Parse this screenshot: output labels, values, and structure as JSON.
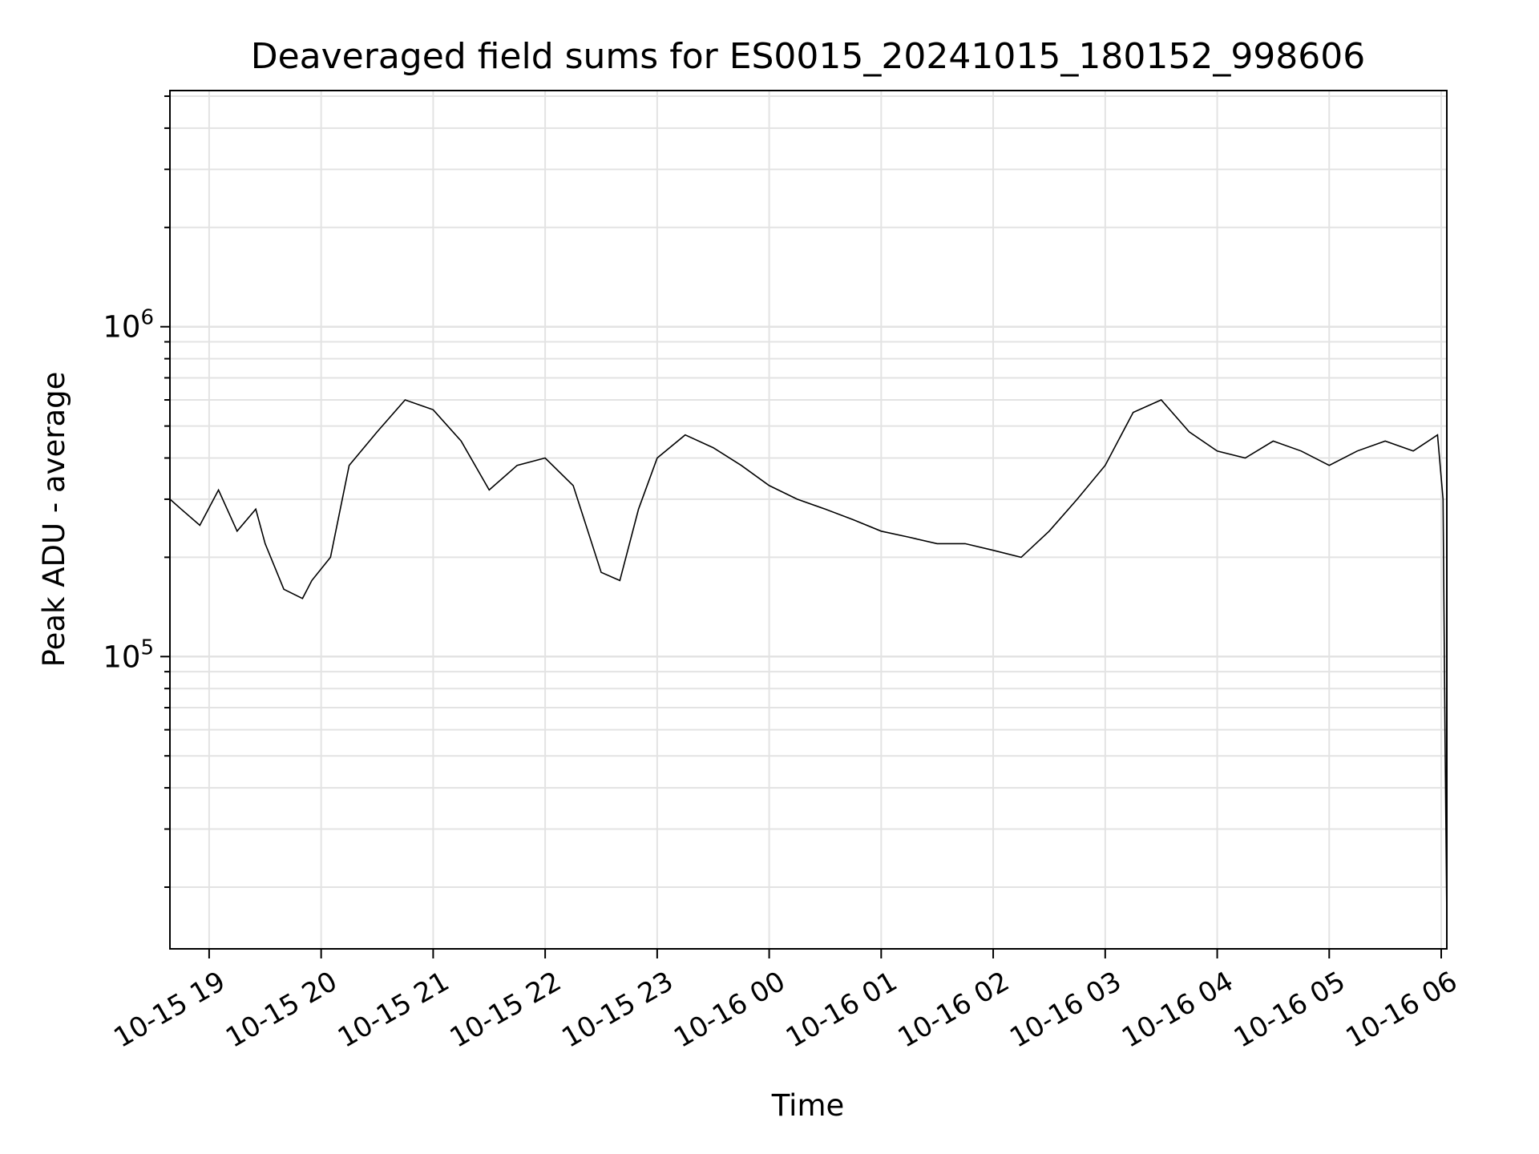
{
  "chart_data": {
    "type": "line",
    "title": "Deaveraged field sums for ES0015_20241015_180152_998606",
    "xlabel": "Time",
    "ylabel": "Peak ADU - average",
    "x_start": "2024-10-15T18:39",
    "x_end": "2024-10-16T06:03",
    "xlim": [
      "2024-10-15T18:39",
      "2024-10-16T06:03"
    ],
    "ylim": [
      13000,
      5200000
    ],
    "yscale": "log",
    "grid": true,
    "line_color": "#000000",
    "grid_color": "#e3e3e3",
    "x_ticks": [
      {
        "label": "10-15 19",
        "time": "2024-10-15T19:00"
      },
      {
        "label": "10-15 20",
        "time": "2024-10-15T20:00"
      },
      {
        "label": "10-15 21",
        "time": "2024-10-15T21:00"
      },
      {
        "label": "10-15 22",
        "time": "2024-10-15T22:00"
      },
      {
        "label": "10-15 23",
        "time": "2024-10-15T23:00"
      },
      {
        "label": "10-16 00",
        "time": "2024-10-16T00:00"
      },
      {
        "label": "10-16 01",
        "time": "2024-10-16T01:00"
      },
      {
        "label": "10-16 02",
        "time": "2024-10-16T02:00"
      },
      {
        "label": "10-16 03",
        "time": "2024-10-16T03:00"
      },
      {
        "label": "10-16 04",
        "time": "2024-10-16T04:00"
      },
      {
        "label": "10-16 05",
        "time": "2024-10-16T05:00"
      },
      {
        "label": "10-16 06",
        "time": "2024-10-16T06:00"
      }
    ],
    "y_ticks": [
      {
        "base": "10",
        "exp": "5",
        "value": 100000
      },
      {
        "base": "10",
        "exp": "6",
        "value": 1000000
      }
    ],
    "series": [
      {
        "values": [
          [
            "2024-10-15T18:39",
            300000
          ],
          [
            "2024-10-15T18:45",
            280000
          ],
          [
            "2024-10-15T18:55",
            250000
          ],
          [
            "2024-10-15T19:05",
            320000
          ],
          [
            "2024-10-15T19:15",
            240000
          ],
          [
            "2024-10-15T19:25",
            280000
          ],
          [
            "2024-10-15T19:30",
            220000
          ],
          [
            "2024-10-15T19:40",
            160000
          ],
          [
            "2024-10-15T19:50",
            150000
          ],
          [
            "2024-10-15T19:55",
            170000
          ],
          [
            "2024-10-15T20:05",
            200000
          ],
          [
            "2024-10-15T20:15",
            380000
          ],
          [
            "2024-10-15T20:30",
            480000
          ],
          [
            "2024-10-15T20:45",
            600000
          ],
          [
            "2024-10-15T21:00",
            560000
          ],
          [
            "2024-10-15T21:15",
            450000
          ],
          [
            "2024-10-15T21:30",
            320000
          ],
          [
            "2024-10-15T21:45",
            380000
          ],
          [
            "2024-10-15T22:00",
            400000
          ],
          [
            "2024-10-15T22:15",
            330000
          ],
          [
            "2024-10-15T22:30",
            180000
          ],
          [
            "2024-10-15T22:40",
            170000
          ],
          [
            "2024-10-15T22:50",
            280000
          ],
          [
            "2024-10-15T23:00",
            400000
          ],
          [
            "2024-10-15T23:15",
            470000
          ],
          [
            "2024-10-15T23:30",
            430000
          ],
          [
            "2024-10-15T23:45",
            380000
          ],
          [
            "2024-10-16T00:00",
            330000
          ],
          [
            "2024-10-16T00:15",
            300000
          ],
          [
            "2024-10-16T00:30",
            280000
          ],
          [
            "2024-10-16T00:45",
            260000
          ],
          [
            "2024-10-16T01:00",
            240000
          ],
          [
            "2024-10-16T01:15",
            230000
          ],
          [
            "2024-10-16T01:30",
            220000
          ],
          [
            "2024-10-16T01:45",
            220000
          ],
          [
            "2024-10-16T02:00",
            210000
          ],
          [
            "2024-10-16T02:15",
            200000
          ],
          [
            "2024-10-16T02:30",
            240000
          ],
          [
            "2024-10-16T02:45",
            300000
          ],
          [
            "2024-10-16T03:00",
            380000
          ],
          [
            "2024-10-16T03:15",
            550000
          ],
          [
            "2024-10-16T03:30",
            600000
          ],
          [
            "2024-10-16T03:45",
            480000
          ],
          [
            "2024-10-16T04:00",
            420000
          ],
          [
            "2024-10-16T04:15",
            400000
          ],
          [
            "2024-10-16T04:30",
            450000
          ],
          [
            "2024-10-16T04:45",
            420000
          ],
          [
            "2024-10-16T05:00",
            380000
          ],
          [
            "2024-10-16T05:15",
            420000
          ],
          [
            "2024-10-16T05:30",
            450000
          ],
          [
            "2024-10-16T05:45",
            420000
          ],
          [
            "2024-10-16T05:58",
            470000
          ],
          [
            "2024-10-16T06:01",
            300000
          ],
          [
            "2024-10-16T06:02",
            60000
          ],
          [
            "2024-10-16T06:03",
            16000
          ]
        ]
      }
    ]
  }
}
